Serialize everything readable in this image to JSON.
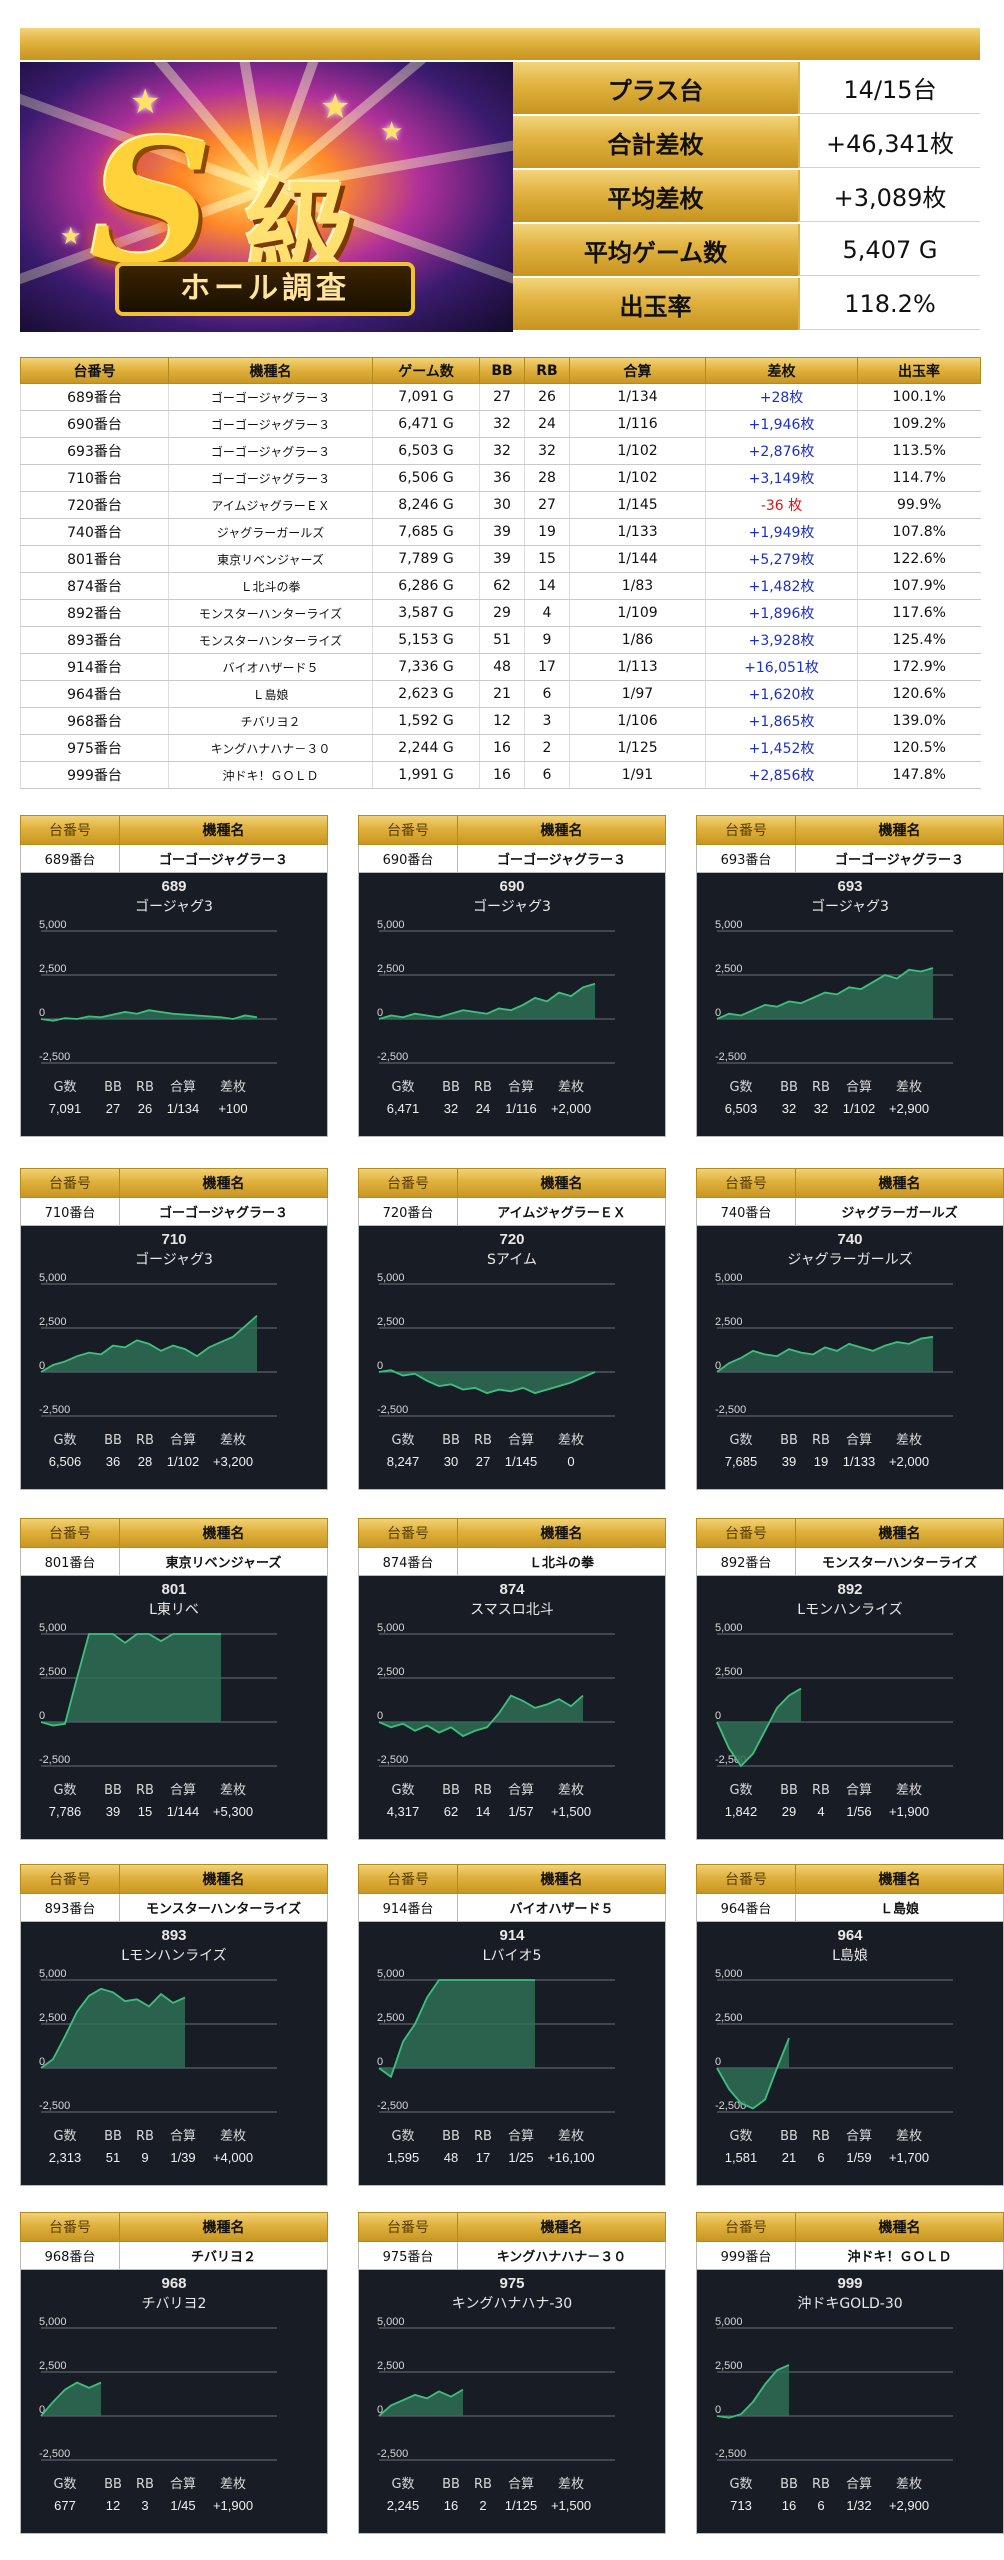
{
  "banner": {
    "main_letter": "S",
    "main_kanji": "級",
    "ribbon_text": "ホール調査"
  },
  "summary": [
    {
      "label": "プラス台",
      "value": "14/15台"
    },
    {
      "label": "合計差枚",
      "value": "+46,341枚"
    },
    {
      "label": "平均差枚",
      "value": "+3,089枚"
    },
    {
      "label": "平均ゲーム数",
      "value": "5,407 G"
    },
    {
      "label": "出玉率",
      "value": "118.2%"
    }
  ],
  "table": {
    "headers": [
      "台番号",
      "機種名",
      "ゲーム数",
      "BB",
      "RB",
      "合算",
      "差枚",
      "出玉率"
    ],
    "rows": [
      [
        "689番台",
        "ゴーゴージャグラー３",
        "7,091 G",
        "27",
        "26",
        "1/134",
        "+28枚",
        "100.1%"
      ],
      [
        "690番台",
        "ゴーゴージャグラー３",
        "6,471 G",
        "32",
        "24",
        "1/116",
        "+1,946枚",
        "109.2%"
      ],
      [
        "693番台",
        "ゴーゴージャグラー３",
        "6,503 G",
        "32",
        "32",
        "1/102",
        "+2,876枚",
        "113.5%"
      ],
      [
        "710番台",
        "ゴーゴージャグラー３",
        "6,506 G",
        "36",
        "28",
        "1/102",
        "+3,149枚",
        "114.7%"
      ],
      [
        "720番台",
        "アイムジャグラーＥＸ",
        "8,246 G",
        "30",
        "27",
        "1/145",
        "-36 枚",
        "99.9%"
      ],
      [
        "740番台",
        "ジャグラーガールズ",
        "7,685 G",
        "39",
        "19",
        "1/133",
        "+1,949枚",
        "107.8%"
      ],
      [
        "801番台",
        "東京リベンジャーズ",
        "7,789 G",
        "39",
        "15",
        "1/144",
        "+5,279枚",
        "122.6%"
      ],
      [
        "874番台",
        "Ｌ北斗の拳",
        "6,286 G",
        "62",
        "14",
        "1/83",
        "+1,482枚",
        "107.9%"
      ],
      [
        "892番台",
        "モンスターハンターライズ",
        "3,587 G",
        "29",
        "4",
        "1/109",
        "+1,896枚",
        "117.6%"
      ],
      [
        "893番台",
        "モンスターハンターライズ",
        "5,153 G",
        "51",
        "9",
        "1/86",
        "+3,928枚",
        "125.4%"
      ],
      [
        "914番台",
        "バイオハザード５",
        "7,336 G",
        "48",
        "17",
        "1/113",
        "+16,051枚",
        "172.9%"
      ],
      [
        "964番台",
        "Ｌ島娘",
        "2,623 G",
        "21",
        "6",
        "1/97",
        "+1,620枚",
        "120.6%"
      ],
      [
        "968番台",
        "チバリヨ２",
        "1,592 G",
        "12",
        "3",
        "1/106",
        "+1,865枚",
        "139.0%"
      ],
      [
        "975番台",
        "キングハナハナ－３０",
        "2,244 G",
        "16",
        "2",
        "1/125",
        "+1,452枚",
        "120.5%"
      ],
      [
        "999番台",
        "沖ドキ！ＧＯＬＤ",
        "1,991 G",
        "16",
        "6",
        "1/91",
        "+2,856枚",
        "147.8%"
      ]
    ],
    "negative_color": "#d41414",
    "positive_color": "#1b2fc9"
  },
  "card_header": {
    "num_label": "台番号",
    "model_label": "機種名"
  },
  "chart_labels": {
    "games": "G数",
    "bb": "BB",
    "rb": "RB",
    "total": "合算",
    "diff": "差枚"
  },
  "chart_colors": {
    "background": "#181c25",
    "line": "#3fbf7f",
    "fill": "#2f6e55"
  },
  "chart_data": [
    {
      "type": "area",
      "number": "689",
      "unit": "689番台",
      "model": "ゴーゴージャグラー３",
      "title": "ゴージャグ3",
      "ylim": [
        -2500,
        5000
      ],
      "yticks": [
        "5,000",
        "2,500",
        "0",
        "-2,500"
      ],
      "values": [
        0,
        -100,
        50,
        0,
        150,
        100,
        250,
        400,
        300,
        500,
        400,
        300,
        250,
        200,
        150,
        100,
        0,
        200,
        100
      ],
      "stats": {
        "games": "7,091",
        "bb": "27",
        "rb": "26",
        "total": "1/134",
        "diff": "+100"
      }
    },
    {
      "type": "area",
      "number": "690",
      "unit": "690番台",
      "model": "ゴーゴージャグラー３",
      "title": "ゴージャグ3",
      "ylim": [
        -2500,
        5000
      ],
      "yticks": [
        "5,000",
        "2,500",
        "0",
        "-2,500"
      ],
      "values": [
        0,
        200,
        100,
        300,
        200,
        100,
        300,
        500,
        400,
        300,
        600,
        500,
        800,
        1200,
        1000,
        1500,
        1300,
        1800,
        2000
      ],
      "stats": {
        "games": "6,471",
        "bb": "32",
        "rb": "24",
        "total": "1/116",
        "diff": "+2,000"
      }
    },
    {
      "type": "area",
      "number": "693",
      "unit": "693番台",
      "model": "ゴーゴージャグラー３",
      "title": "ゴージャグ3",
      "ylim": [
        -2500,
        5000
      ],
      "yticks": [
        "5,000",
        "2,500",
        "0",
        "-2,500"
      ],
      "values": [
        0,
        300,
        200,
        500,
        800,
        700,
        1000,
        900,
        1200,
        1500,
        1400,
        1800,
        1700,
        2100,
        2500,
        2300,
        2800,
        2700,
        2900
      ],
      "stats": {
        "games": "6,503",
        "bb": "32",
        "rb": "32",
        "total": "1/102",
        "diff": "+2,900"
      }
    },
    {
      "type": "area",
      "number": "710",
      "unit": "710番台",
      "model": "ゴーゴージャグラー３",
      "title": "ゴージャグ3",
      "ylim": [
        -2500,
        5000
      ],
      "yticks": [
        "5,000",
        "2,500",
        "0",
        "-2,500"
      ],
      "values": [
        0,
        400,
        600,
        900,
        1100,
        1000,
        1500,
        1400,
        1800,
        1600,
        1200,
        1500,
        1300,
        900,
        1400,
        1700,
        2000,
        2600,
        3200
      ],
      "stats": {
        "games": "6,506",
        "bb": "36",
        "rb": "28",
        "total": "1/102",
        "diff": "+3,200"
      }
    },
    {
      "type": "area",
      "number": "720",
      "unit": "720番台",
      "model": "アイムジャグラーＥＸ",
      "title": "Sアイム",
      "ylim": [
        -2500,
        5000
      ],
      "yticks": [
        "5,000",
        "2,500",
        "0",
        "-2,500"
      ],
      "values": [
        0,
        100,
        -200,
        -100,
        -500,
        -800,
        -700,
        -1000,
        -900,
        -1200,
        -1000,
        -1100,
        -900,
        -1200,
        -1000,
        -800,
        -600,
        -300,
        0
      ],
      "stats": {
        "games": "8,247",
        "bb": "30",
        "rb": "27",
        "total": "1/145",
        "diff": "0"
      }
    },
    {
      "type": "area",
      "number": "740",
      "unit": "740番台",
      "model": "ジャグラーガールズ",
      "title": "ジャグラーガールズ",
      "ylim": [
        -2500,
        5000
      ],
      "yticks": [
        "5,000",
        "2,500",
        "0",
        "-2,500"
      ],
      "values": [
        0,
        500,
        800,
        1200,
        1000,
        900,
        1300,
        1100,
        1000,
        1400,
        1200,
        1600,
        1400,
        1200,
        1500,
        1700,
        1600,
        1900,
        2000
      ],
      "stats": {
        "games": "7,685",
        "bb": "39",
        "rb": "19",
        "total": "1/133",
        "diff": "+2,000"
      }
    },
    {
      "type": "area",
      "number": "801",
      "unit": "801番台",
      "model": "東京リベンジャーズ",
      "title": "L東リベ",
      "ylim": [
        -2500,
        5000
      ],
      "yticks": [
        "5,000",
        "2,500",
        "0",
        "-2,500"
      ],
      "values": [
        0,
        -200,
        -100,
        2500,
        5000,
        5000,
        5000,
        4500,
        5000,
        5000,
        4600,
        5000,
        5000,
        5000,
        5000,
        5000
      ],
      "stats": {
        "games": "7,786",
        "bb": "39",
        "rb": "15",
        "total": "1/144",
        "diff": "+5,300"
      }
    },
    {
      "type": "area",
      "number": "874",
      "unit": "874番台",
      "model": "Ｌ北斗の拳",
      "title": "スマスロ北斗",
      "ylim": [
        -2500,
        5000
      ],
      "yticks": [
        "5,000",
        "2,500",
        "0",
        "-2,500"
      ],
      "values": [
        0,
        -300,
        -100,
        -500,
        -200,
        -600,
        -300,
        -800,
        -500,
        -300,
        500,
        1500,
        1200,
        800,
        1000,
        1300,
        900,
        1500
      ],
      "stats": {
        "games": "4,317",
        "bb": "62",
        "rb": "14",
        "total": "1/57",
        "diff": "+1,500"
      }
    },
    {
      "type": "area",
      "number": "892",
      "unit": "892番台",
      "model": "モンスターハンターライズ",
      "title": "Lモンハンライズ",
      "ylim": [
        -2500,
        5000
      ],
      "yticks": [
        "5,000",
        "2,500",
        "0",
        "-2,500"
      ],
      "values": [
        0,
        -1500,
        -2500,
        -1800,
        -500,
        800,
        1500,
        1900
      ],
      "stats": {
        "games": "1,842",
        "bb": "29",
        "rb": "4",
        "total": "1/56",
        "diff": "+1,900"
      }
    },
    {
      "type": "area",
      "number": "893",
      "unit": "893番台",
      "model": "モンスターハンターライズ",
      "title": "Lモンハンライズ",
      "ylim": [
        -2500,
        5000
      ],
      "yticks": [
        "5,000",
        "2,500",
        "0",
        "-2,500"
      ],
      "values": [
        0,
        500,
        1800,
        3200,
        4100,
        4500,
        4300,
        3800,
        3900,
        3500,
        4200,
        3700,
        4000
      ],
      "stats": {
        "games": "2,313",
        "bb": "51",
        "rb": "9",
        "total": "1/39",
        "diff": "+4,000"
      }
    },
    {
      "type": "area",
      "number": "914",
      "unit": "914番台",
      "model": "バイオハザード５",
      "title": "Lバイオ5",
      "ylim": [
        -2500,
        5000
      ],
      "yticks": [
        "5,000",
        "2,500",
        "0",
        "-2,500"
      ],
      "values": [
        0,
        -500,
        1500,
        2500,
        4000,
        5000,
        5000,
        5000,
        5000,
        5000,
        5000,
        5000,
        5000,
        5000
      ],
      "stats": {
        "games": "1,595",
        "bb": "48",
        "rb": "17",
        "total": "1/25",
        "diff": "+16,100"
      }
    },
    {
      "type": "area",
      "number": "964",
      "unit": "964番台",
      "model": "Ｌ島娘",
      "title": "L島娘",
      "ylim": [
        -2500,
        5000
      ],
      "yticks": [
        "5,000",
        "2,500",
        "0",
        "-2,500"
      ],
      "values": [
        0,
        -1200,
        -2000,
        -2300,
        -1800,
        0,
        1700
      ],
      "stats": {
        "games": "1,581",
        "bb": "21",
        "rb": "6",
        "total": "1/59",
        "diff": "+1,700"
      }
    },
    {
      "type": "area",
      "number": "968",
      "unit": "968番台",
      "model": "チバリヨ２",
      "title": "チバリヨ2",
      "ylim": [
        -2500,
        5000
      ],
      "yticks": [
        "5,000",
        "2,500",
        "0",
        "-2,500"
      ],
      "values": [
        0,
        800,
        1500,
        1900,
        1600,
        1900
      ],
      "stats": {
        "games": "677",
        "bb": "12",
        "rb": "3",
        "total": "1/45",
        "diff": "+1,900"
      }
    },
    {
      "type": "area",
      "number": "975",
      "unit": "975番台",
      "model": "キングハナハナ－３０",
      "title": "キングハナハナ-30",
      "ylim": [
        -2500,
        5000
      ],
      "yticks": [
        "5,000",
        "2,500",
        "0",
        "-2,500"
      ],
      "values": [
        0,
        600,
        900,
        1200,
        1000,
        1400,
        1100,
        1500
      ],
      "stats": {
        "games": "2,245",
        "bb": "16",
        "rb": "2",
        "total": "1/125",
        "diff": "+1,500"
      }
    },
    {
      "type": "area",
      "number": "999",
      "unit": "999番台",
      "model": "沖ドキ！ＧＯＬＤ",
      "title": "沖ドキGOLD-30",
      "ylim": [
        -2500,
        5000
      ],
      "yticks": [
        "5,000",
        "2,500",
        "0",
        "-2,500"
      ],
      "values": [
        0,
        -100,
        100,
        800,
        1800,
        2600,
        2900
      ],
      "stats": {
        "games": "713",
        "bb": "16",
        "rb": "6",
        "total": "1/32",
        "diff": "+2,900"
      }
    }
  ]
}
